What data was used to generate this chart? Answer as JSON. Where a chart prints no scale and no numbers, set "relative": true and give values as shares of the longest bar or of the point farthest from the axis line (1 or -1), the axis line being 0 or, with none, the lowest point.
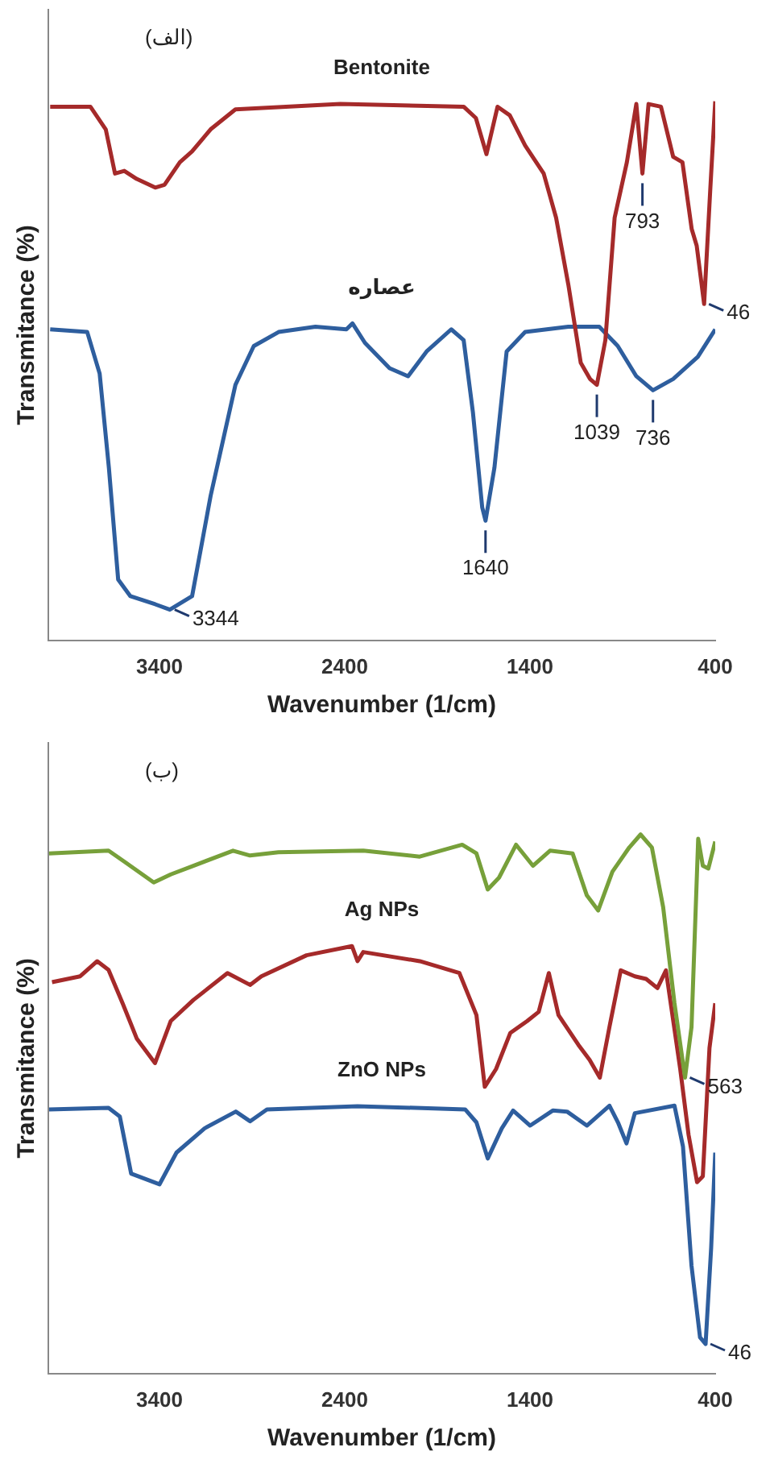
{
  "chart_data": [
    {
      "type": "line",
      "relative": true,
      "xlabel": "Wavenumber (1/cm)",
      "ylabel": "Transmitance (%)",
      "xlim": [
        4000,
        400
      ],
      "xticks": [
        3400,
        2400,
        1400,
        400
      ],
      "tick_labels": "x",
      "grid": false,
      "legend": false,
      "marker": "none",
      "line_style": "solid",
      "annotations": [
        "(الف)",
        {
          "text": "3344",
          "x": 3344,
          "y": 0.057
        },
        {
          "text": "1640",
          "x": 1640,
          "y": 0.222
        },
        {
          "text": "736",
          "x": 736,
          "y": 0.464
        },
        {
          "text": "793",
          "x": 793,
          "y": 0.866
        },
        {
          "text": "46",
          "x": 460,
          "y": 0.624
        },
        {
          "text": "1039",
          "x": 1039,
          "y": 0.474
        }
      ],
      "series": [
        {
          "name": "Bentonite",
          "color": "#a52a2a",
          "x": [
            3990,
            3773,
            3690,
            3640,
            3590,
            3523,
            3423,
            3373,
            3290,
            3224,
            3124,
            2990,
            2424,
            1758,
            1692,
            1635,
            1575,
            1509,
            1426,
            1326,
            1259,
            1193,
            1126,
            1076,
            1039,
            993,
            943,
            877,
            826,
            793,
            760,
            693,
            627,
            577,
            527,
            500,
            460,
            427,
            400
          ],
          "values": [
            0.99,
            0.99,
            0.948,
            0.866,
            0.871,
            0.856,
            0.84,
            0.845,
            0.887,
            0.907,
            0.948,
            0.985,
            0.995,
            0.99,
            0.969,
            0.902,
            0.99,
            0.974,
            0.918,
            0.866,
            0.784,
            0.66,
            0.515,
            0.485,
            0.474,
            0.557,
            0.784,
            0.887,
            0.995,
            0.866,
            0.995,
            0.99,
            0.897,
            0.887,
            0.763,
            0.732,
            0.624,
            0.835,
            1.0
          ]
        },
        {
          "name": "عصاره",
          "color": "#2e5e9e",
          "x": [
            3990,
            3790,
            3723,
            3673,
            3623,
            3557,
            3423,
            3344,
            3224,
            3124,
            2990,
            2891,
            2757,
            2558,
            2391,
            2358,
            2291,
            2158,
            2058,
            1958,
            1825,
            1758,
            1708,
            1658,
            1640,
            1592,
            1526,
            1426,
            1193,
            1026,
            926,
            826,
            736,
            627,
            494,
            400
          ],
          "values": [
            0.577,
            0.572,
            0.495,
            0.32,
            0.113,
            0.082,
            0.067,
            0.057,
            0.082,
            0.268,
            0.474,
            0.546,
            0.572,
            0.582,
            0.577,
            0.588,
            0.552,
            0.505,
            0.49,
            0.536,
            0.577,
            0.557,
            0.423,
            0.247,
            0.222,
            0.32,
            0.536,
            0.572,
            0.582,
            0.582,
            0.546,
            0.49,
            0.464,
            0.485,
            0.526,
            0.577
          ]
        }
      ]
    },
    {
      "type": "line",
      "relative": true,
      "xlabel": "Wavenumber (1/cm)",
      "ylabel": "Transmitance (%)",
      "xlim": [
        4000,
        400
      ],
      "xticks": [
        3400,
        2400,
        1400,
        400
      ],
      "tick_labels": "x",
      "grid": false,
      "legend": false,
      "marker": "none",
      "line_style": "solid",
      "annotations": [
        "(ب)",
        {
          "text": "563",
          "x": 563,
          "y": 0.549
        },
        {
          "text": "46",
          "x": 452,
          "y": 0.055
        }
      ],
      "series": [
        {
          "color": "#77a03a",
          "x": [
            3996,
            3675,
            3583,
            3431,
            3339,
            3217,
            3003,
            2911,
            2758,
            2300,
            1995,
            1766,
            1689,
            1628,
            1567,
            1475,
            1384,
            1292,
            1170,
            1093,
            1032,
            955,
            864,
            803,
            742,
            681,
            620,
            563,
            528,
            492,
            467,
            437,
            400
          ],
          "values": [
            0.965,
            0.97,
            0.948,
            0.911,
            0.926,
            0.942,
            0.97,
            0.961,
            0.967,
            0.97,
            0.959,
            0.981,
            0.965,
            0.898,
            0.92,
            0.981,
            0.942,
            0.97,
            0.965,
            0.887,
            0.859,
            0.931,
            0.976,
            1.0,
            0.976,
            0.865,
            0.687,
            0.549,
            0.643,
            0.992,
            0.942,
            0.937,
            0.987
          ]
        },
        {
          "name": "Ag NPs",
          "color": "#a52a2a",
          "x": [
            3980,
            3828,
            3736,
            3675,
            3599,
            3522,
            3424,
            3339,
            3217,
            3033,
            2911,
            2850,
            2606,
            2361,
            2331,
            2300,
            1995,
            1781,
            1689,
            1644,
            1583,
            1506,
            1415,
            1353,
            1298,
            1246,
            1139,
            1078,
            1023,
            971,
            910,
            834,
            773,
            712,
            666,
            589,
            544,
            498,
            467,
            431,
            400
          ],
          "values": [
            0.726,
            0.737,
            0.765,
            0.749,
            0.687,
            0.621,
            0.576,
            0.654,
            0.693,
            0.743,
            0.721,
            0.737,
            0.776,
            0.793,
            0.765,
            0.782,
            0.765,
            0.743,
            0.665,
            0.532,
            0.565,
            0.632,
            0.654,
            0.671,
            0.743,
            0.665,
            0.61,
            0.582,
            0.549,
            0.643,
            0.748,
            0.737,
            0.732,
            0.715,
            0.748,
            0.565,
            0.443,
            0.355,
            0.366,
            0.604,
            0.687
          ]
        },
        {
          "name": "ZnO NPs",
          "color": "#2e5e9e",
          "x": [
            3996,
            3675,
            3614,
            3553,
            3400,
            3308,
            3156,
            2988,
            2911,
            2820,
            2331,
            1750,
            1689,
            1628,
            1552,
            1491,
            1399,
            1277,
            1200,
            1093,
            971,
            925,
            879,
            834,
            620,
            574,
            528,
            482,
            452,
            422,
            400
          ],
          "values": [
            0.49,
            0.493,
            0.477,
            0.371,
            0.351,
            0.41,
            0.455,
            0.486,
            0.468,
            0.49,
            0.496,
            0.49,
            0.466,
            0.399,
            0.455,
            0.488,
            0.46,
            0.488,
            0.486,
            0.46,
            0.497,
            0.466,
            0.427,
            0.483,
            0.497,
            0.421,
            0.2,
            0.067,
            0.055,
            0.233,
            0.41
          ]
        }
      ]
    }
  ]
}
